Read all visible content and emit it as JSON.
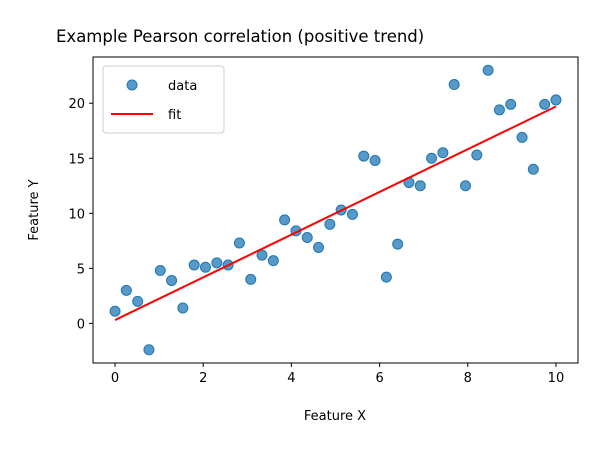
{
  "chart_data": {
    "type": "scatter",
    "title": "Example Pearson correlation (positive trend)",
    "xlabel": "Feature X",
    "ylabel": "Feature Y",
    "xlim": [
      -0.5,
      10.5
    ],
    "ylim": [
      -3.6,
      24.2
    ],
    "xticks": [
      0,
      2,
      4,
      6,
      8,
      10
    ],
    "yticks": [
      0,
      5,
      10,
      15,
      20
    ],
    "grid": false,
    "legend_position": "top-left",
    "series": [
      {
        "name": "data",
        "kind": "scatter",
        "color": "#1f77b4",
        "x": [
          0,
          0.256,
          0.513,
          0.769,
          1.026,
          1.282,
          1.538,
          1.795,
          2.051,
          2.308,
          2.564,
          2.821,
          3.077,
          3.333,
          3.59,
          3.846,
          4.103,
          4.359,
          4.615,
          4.872,
          5.128,
          5.385,
          5.641,
          5.897,
          6.154,
          6.41,
          6.667,
          6.923,
          7.179,
          7.436,
          7.692,
          7.949,
          8.205,
          8.462,
          8.718,
          8.974,
          9.231,
          9.487,
          9.744,
          10
        ],
        "y": [
          1.1,
          3.0,
          2.0,
          -2.4,
          4.8,
          3.9,
          1.4,
          5.3,
          5.1,
          5.5,
          5.3,
          7.3,
          4.0,
          6.2,
          5.7,
          9.4,
          8.4,
          7.8,
          6.9,
          9.0,
          10.3,
          9.9,
          15.2,
          14.8,
          4.2,
          7.2,
          12.8,
          12.5,
          15.0,
          15.5,
          21.7,
          12.5,
          15.3,
          23.0,
          19.4,
          19.9,
          16.9,
          14.0,
          19.9,
          20.3
        ]
      },
      {
        "name": "fit",
        "kind": "line",
        "color": "#ff0000",
        "x": [
          0,
          10
        ],
        "y": [
          0.3,
          19.7
        ]
      }
    ]
  }
}
